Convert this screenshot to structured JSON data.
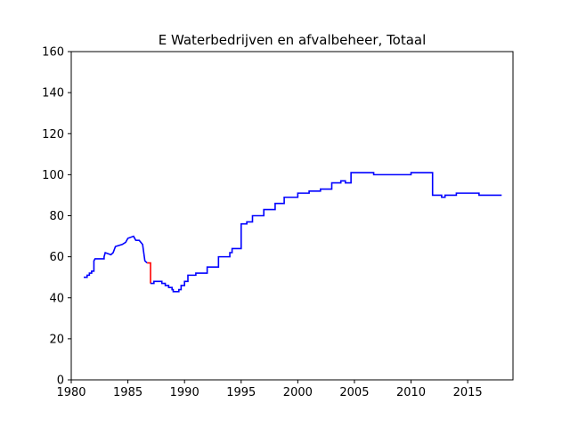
{
  "chart_data": {
    "type": "line",
    "title": "E Waterbedrijven en afvalbeheer, Totaal",
    "xlabel": "",
    "ylabel": "",
    "xlim": [
      1980,
      2019
    ],
    "ylim": [
      0,
      160
    ],
    "xticks": [
      1980,
      1985,
      1990,
      1995,
      2000,
      2005,
      2010,
      2015
    ],
    "yticks": [
      0,
      20,
      40,
      60,
      80,
      100,
      120,
      140,
      160
    ],
    "grid": false,
    "legend": "none",
    "series": [
      {
        "color": "#0000ff",
        "x": [
          1981.1,
          1981.4,
          1981.4,
          1981.6,
          1981.6,
          1981.8,
          1981.8,
          1982.0,
          1982.0,
          1982.1,
          1982.1,
          1982.9,
          1982.9,
          1983.0,
          1983.0,
          1983.5,
          1983.5,
          1983.7,
          1983.7,
          1983.9,
          1983.9,
          1984.5,
          1984.5,
          1984.8,
          1984.8,
          1985.0,
          1985.0,
          1985.5,
          1985.5,
          1985.7,
          1985.7,
          1986.0,
          1986.0,
          1986.3,
          1986.3,
          1986.5,
          1986.5,
          1986.7
        ],
        "y": [
          50,
          50,
          51,
          51,
          52,
          52,
          53,
          53,
          58,
          59,
          59,
          59,
          60,
          62,
          62,
          61,
          61,
          62,
          62,
          65,
          65,
          66,
          66,
          67,
          67,
          69,
          69,
          70,
          70,
          68,
          68,
          68,
          68,
          66,
          66,
          58,
          58,
          57
        ]
      },
      {
        "color": "#ff0000",
        "x": [
          1986.7,
          1987.0,
          1987.0
        ],
        "y": [
          57,
          57,
          47
        ]
      },
      {
        "color": "#0000ff",
        "x": [
          1987.0,
          1987.3,
          1987.3,
          1988.0,
          1988.0,
          1988.3,
          1988.3,
          1988.6,
          1988.6,
          1988.9,
          1988.9,
          1989.0,
          1989.0,
          1989.5,
          1989.5,
          1989.7,
          1989.7,
          1990.0,
          1990.0,
          1990.3,
          1990.3,
          1991.0,
          1991.0,
          1992.0,
          1992.0,
          1993.0,
          1993.0,
          1994.0,
          1994.0,
          1994.2,
          1994.2,
          1995.0,
          1995.0,
          1995.5,
          1995.5,
          1996.0,
          1996.0,
          1997.0,
          1997.0,
          1998.0,
          1998.0,
          1998.8,
          1998.8,
          2000.0,
          2000.0,
          2001.0,
          2001.0,
          2002.0,
          2002.0,
          2003.0,
          2003.0,
          2003.8,
          2003.8,
          2004.2,
          2004.2,
          2004.7,
          2004.7,
          2005.0,
          2005.0,
          2006.0,
          2006.0,
          2006.7,
          2006.7,
          2007.0,
          2007.0,
          2008.0,
          2008.0,
          2009.0,
          2009.0,
          2010.0,
          2010.0,
          2011.0,
          2011.0,
          2011.9,
          2011.9,
          2012.0,
          2012.0,
          2012.7,
          2012.7,
          2013.0,
          2013.0,
          2014.0,
          2014.0,
          2015.0,
          2015.0,
          2016.0,
          2016.0,
          2017.0,
          2017.0,
          2018.0
        ],
        "y": [
          47,
          47,
          48,
          48,
          47,
          47,
          46,
          46,
          45,
          45,
          44,
          44,
          43,
          43,
          44,
          44,
          46,
          46,
          48,
          48,
          51,
          51,
          52,
          52,
          55,
          55,
          60,
          60,
          62,
          62,
          64,
          64,
          76,
          76,
          77,
          77,
          80,
          80,
          83,
          83,
          86,
          86,
          89,
          89,
          91,
          91,
          92,
          92,
          93,
          93,
          96,
          96,
          97,
          97,
          96,
          96,
          101,
          101,
          101,
          101,
          101,
          101,
          100,
          100,
          100,
          100,
          100,
          100,
          100,
          100,
          101,
          101,
          101,
          101,
          90,
          90,
          90,
          90,
          89,
          89,
          90,
          90,
          91,
          91,
          91,
          91,
          90,
          90,
          90,
          90
        ]
      }
    ]
  }
}
